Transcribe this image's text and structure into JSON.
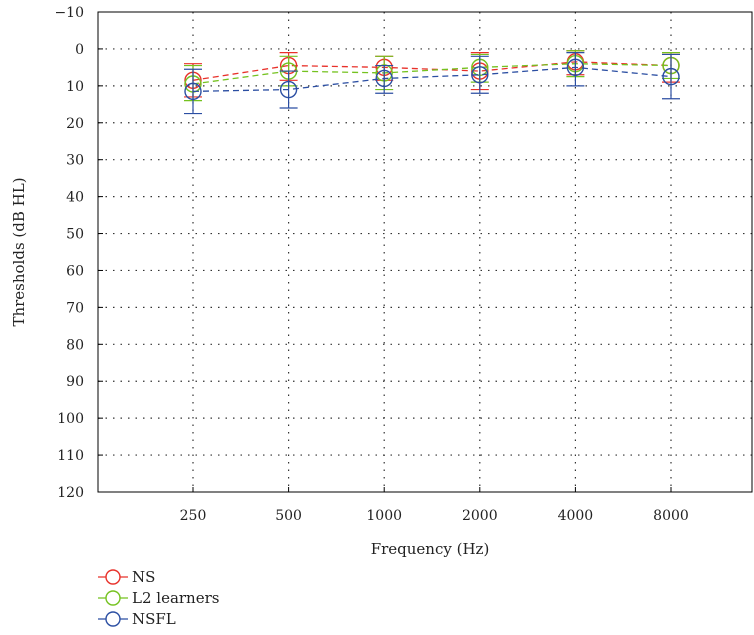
{
  "chart_data": {
    "type": "line",
    "xlabel": "Frequency (Hz)",
    "ylabel": "Thresholds (dB HL)",
    "categories": [
      "250",
      "500",
      "1000",
      "2000",
      "4000",
      "8000"
    ],
    "y_ticks": [
      "−10",
      "0",
      "10",
      "20",
      "30",
      "40",
      "50",
      "60",
      "70",
      "80",
      "90",
      "100",
      "110",
      "120"
    ],
    "ylim": [
      -10,
      120
    ],
    "y_inverted": true,
    "grid": "dotted",
    "legend_position": "bottom-left",
    "series": [
      {
        "name": "NS",
        "color": "#e8312a",
        "values": [
          8.5,
          4.5,
          5,
          6,
          3.5,
          4.5
        ],
        "err_low": [
          4,
          1,
          2,
          1,
          0.5,
          1
        ],
        "err_high": [
          13,
          8.5,
          8.5,
          11,
          7,
          9
        ]
      },
      {
        "name": "L2 learners",
        "color": "#74c21f",
        "values": [
          9.5,
          6,
          6.5,
          5,
          4,
          4.5
        ],
        "err_low": [
          4.5,
          2,
          2,
          1.5,
          0.5,
          1
        ],
        "err_high": [
          14,
          10,
          11,
          9,
          7.5,
          8
        ]
      },
      {
        "name": "NSFL",
        "color": "#2b4ea2",
        "values": [
          11.5,
          11,
          8,
          7,
          5,
          7.5
        ],
        "err_low": [
          5.5,
          6,
          4.5,
          2,
          1,
          1.5
        ],
        "err_high": [
          17.5,
          16,
          12,
          12,
          10,
          13.5
        ]
      }
    ]
  }
}
